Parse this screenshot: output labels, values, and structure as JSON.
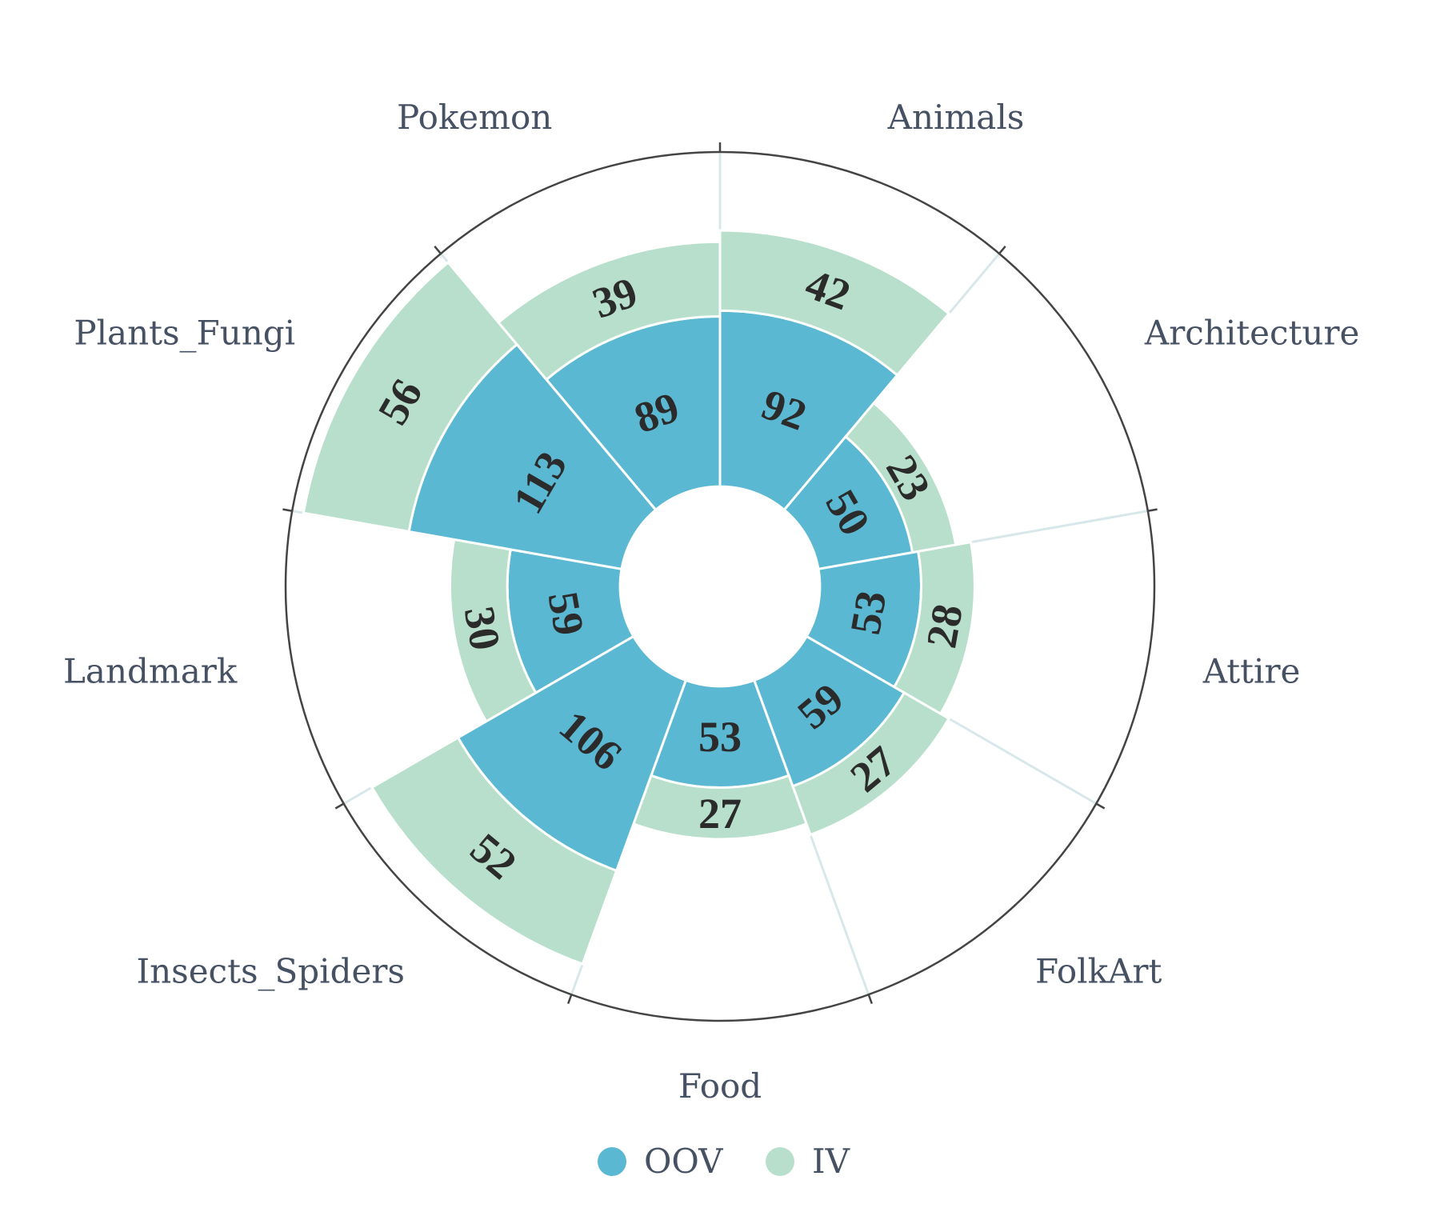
{
  "chart_data": {
    "type": "polar-stacked-bar",
    "categories": [
      "Animals",
      "Architecture",
      "Attire",
      "FolkArt",
      "Food",
      "Insects_Spiders",
      "Landmark",
      "Plants_Fungi",
      "Pokemon"
    ],
    "series": [
      {
        "name": "OOV",
        "color": "#5bb8d3",
        "values": [
          92,
          50,
          53,
          59,
          53,
          106,
          59,
          113,
          89
        ]
      },
      {
        "name": "IV",
        "color": "#b8dfcc",
        "values": [
          42,
          23,
          28,
          27,
          27,
          52,
          30,
          56,
          39
        ]
      }
    ],
    "radial_range": [
      0,
      175
    ],
    "hole_fraction": 0.23,
    "direction": "clockwise",
    "legend": {
      "position": "bottom-center"
    }
  }
}
